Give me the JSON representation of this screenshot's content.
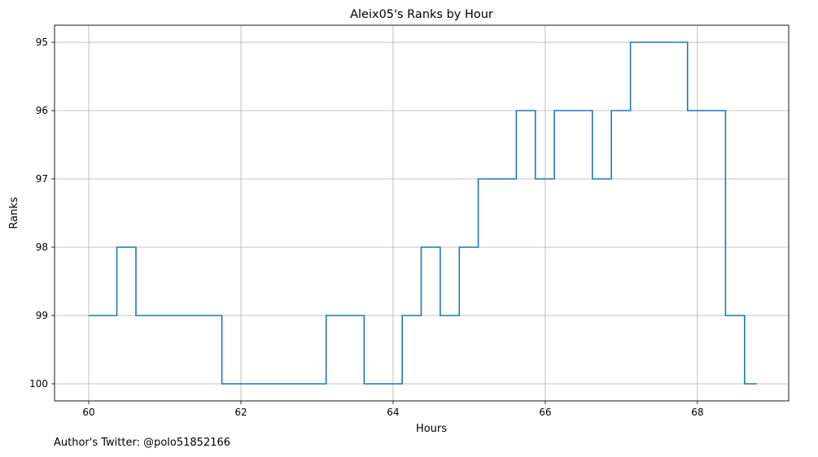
{
  "chart_data": {
    "type": "line",
    "step": true,
    "title": "Aleix05's Ranks by Hour",
    "xlabel": "Hours",
    "ylabel": "Ranks",
    "xlim": [
      59.55,
      69.2
    ],
    "ylim": [
      100.25,
      94.75
    ],
    "y_inverted": true,
    "xticks": [
      60,
      62,
      64,
      66,
      68
    ],
    "yticks": [
      95,
      96,
      97,
      98,
      99,
      100
    ],
    "grid": true,
    "line_color": "#1f77b4",
    "series": [
      {
        "x": [
          60.0,
          60.37,
          60.62,
          61.75,
          63.12,
          63.62,
          64.12,
          64.37,
          64.62,
          64.87,
          65.12,
          65.62,
          65.87,
          66.12,
          66.62,
          66.87,
          67.12,
          67.87,
          68.37,
          68.62,
          68.78
        ],
        "y": [
          99,
          98,
          99,
          100,
          99,
          100,
          99,
          98,
          99,
          98,
          97,
          96,
          97,
          96,
          97,
          96,
          95,
          96,
          99,
          100,
          100
        ]
      }
    ]
  },
  "footer": {
    "text": "Author's Twitter: @polo51852166"
  }
}
